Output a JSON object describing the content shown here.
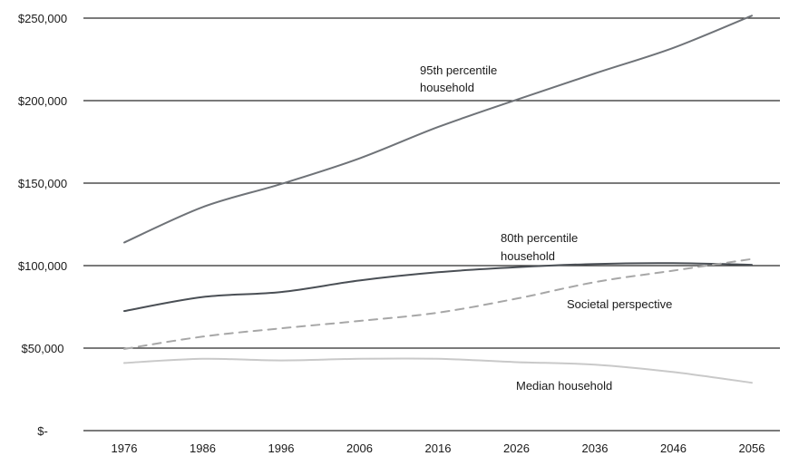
{
  "chart_data": {
    "type": "line",
    "title": "",
    "xlabel": "",
    "ylabel": "",
    "x": [
      "1976",
      "1986",
      "1996",
      "2006",
      "2016",
      "2026",
      "2036",
      "2046",
      "2056"
    ],
    "ylim": [
      0,
      250000
    ],
    "yticks": [
      {
        "value": 0,
        "label": "$-"
      },
      {
        "value": 50000,
        "label": "$50,000"
      },
      {
        "value": 100000,
        "label": "$100,000"
      },
      {
        "value": 150000,
        "label": "$150,000"
      },
      {
        "value": 200000,
        "label": "$200,000"
      },
      {
        "value": 250000,
        "label": "$250,000"
      }
    ],
    "grid": true,
    "legend": "none",
    "series": [
      {
        "name": "95th percentile household",
        "color": "#6f7378",
        "dash": false,
        "values": [
          114000,
          135500,
          149500,
          165000,
          184000,
          200500,
          216500,
          232000,
          251500
        ]
      },
      {
        "name": "80th percentile household",
        "color": "#4a4f55",
        "dash": false,
        "values": [
          72500,
          81000,
          84000,
          91000,
          96000,
          99000,
          101000,
          101500,
          100500
        ]
      },
      {
        "name": "Societal perspective",
        "color": "#a7a7a7",
        "dash": true,
        "values": [
          49500,
          57000,
          62000,
          66500,
          71500,
          80000,
          90000,
          97000,
          104000
        ]
      },
      {
        "name": "Median household",
        "color": "#c9c9c9",
        "dash": false,
        "values": [
          41000,
          43500,
          42500,
          43500,
          43500,
          41500,
          40000,
          35500,
          29000
        ]
      }
    ],
    "annotations": [
      {
        "lines": [
          "95th percentile",
          "household"
        ]
      },
      {
        "lines": [
          "80th percentile",
          "household"
        ]
      },
      {
        "lines": [
          "Societal perspective"
        ]
      },
      {
        "lines": [
          "Median household"
        ]
      }
    ]
  }
}
